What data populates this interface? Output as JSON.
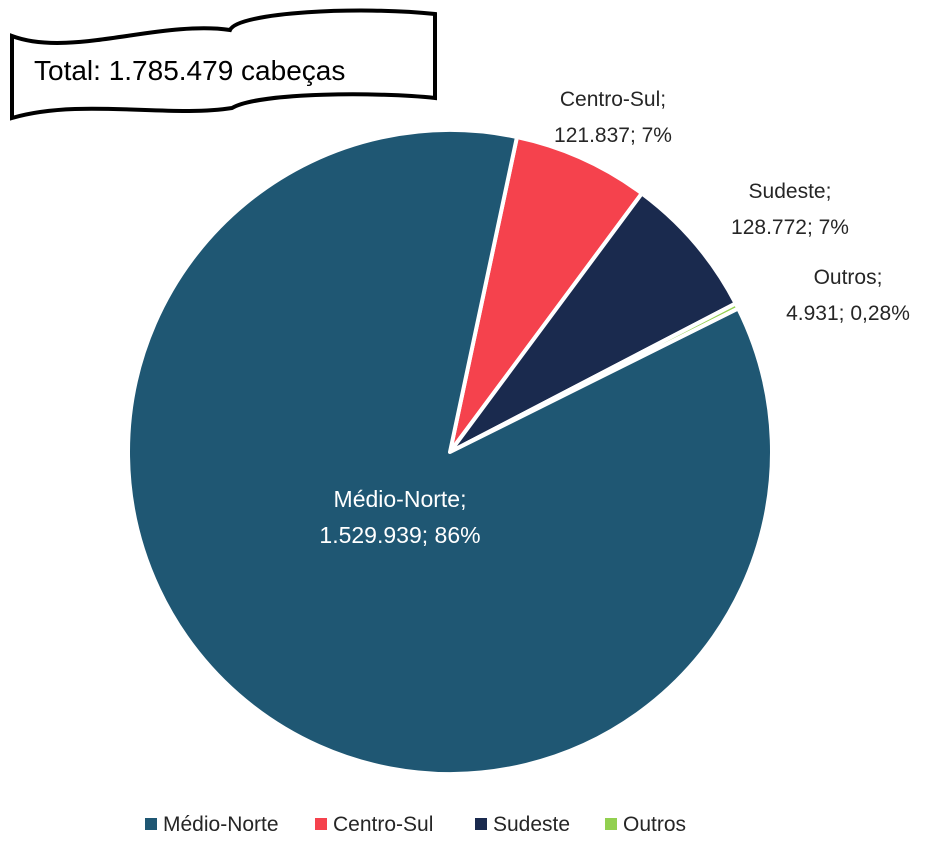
{
  "callout": {
    "text": "Total: 1.785.479 cabeças"
  },
  "chart_data": {
    "type": "pie",
    "title": "",
    "legend_position": "bottom",
    "slices": [
      {
        "name": "Médio-Norte",
        "value": 1529939,
        "value_label": "1.529.939",
        "percent_label": "86%",
        "color": "#1F5773"
      },
      {
        "name": "Centro-Sul",
        "value": 121837,
        "value_label": "121.837",
        "percent_label": "7%",
        "color": "#F5424D"
      },
      {
        "name": "Sudeste",
        "value": 128772,
        "value_label": "128.772",
        "percent_label": "7%",
        "color": "#1A2A4E"
      },
      {
        "name": "Outros",
        "value": 4931,
        "value_label": "4.931",
        "percent_label": "0,28%",
        "color": "#92D050"
      }
    ],
    "legend": [
      "Médio-Norte",
      "Centro-Sul",
      "Sudeste",
      "Outros"
    ]
  }
}
